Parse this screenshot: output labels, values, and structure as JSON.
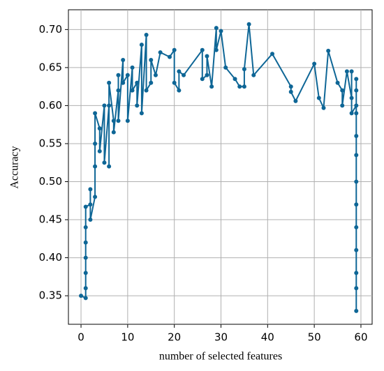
{
  "chart_data": {
    "type": "line",
    "xlabel": "number of selected features",
    "ylabel": "Accuracy",
    "xlim": [
      -2.7,
      62.4
    ],
    "ylim": [
      0.3125,
      0.726
    ],
    "xticks": [
      0,
      10,
      20,
      30,
      40,
      50,
      60
    ],
    "yticks": [
      0.35,
      {
        "value": 0.4,
        "label": "0.40"
      },
      0.45,
      {
        "value": 0.5,
        "label": "0.50"
      },
      0.55,
      {
        "value": 0.6,
        "label": "0.60"
      },
      0.65,
      {
        "value": 0.7,
        "label": "0.70"
      }
    ],
    "grid": true,
    "series": [
      {
        "color": "#0e6696",
        "x": [
          0,
          1,
          1,
          1,
          1,
          1,
          1,
          1,
          2,
          2,
          2,
          3,
          3,
          3,
          3,
          4,
          4,
          5,
          5,
          6,
          6,
          6,
          7,
          7,
          8,
          8,
          8,
          9,
          9,
          10,
          10,
          11,
          11,
          12,
          12,
          13,
          13,
          14,
          14,
          15,
          15,
          16,
          17,
          19,
          20,
          20,
          21,
          21,
          22,
          26,
          26,
          27,
          27,
          28,
          29,
          29,
          30,
          31,
          33,
          34,
          35,
          35,
          36,
          37,
          41,
          45,
          45,
          46,
          50,
          51,
          52,
          53,
          55,
          56,
          56,
          57,
          58,
          58,
          58,
          59,
          59,
          59,
          59,
          59,
          59,
          59,
          59,
          59,
          59,
          59,
          59,
          59
        ],
        "values": [
          0.35,
          0.347,
          0.36,
          0.38,
          0.4,
          0.42,
          0.44,
          0.467,
          0.47,
          0.49,
          0.45,
          0.48,
          0.52,
          0.55,
          0.59,
          0.57,
          0.54,
          0.6,
          0.525,
          0.6,
          0.52,
          0.63,
          0.58,
          0.565,
          0.62,
          0.64,
          0.58,
          0.66,
          0.63,
          0.64,
          0.58,
          0.65,
          0.62,
          0.63,
          0.6,
          0.68,
          0.59,
          0.693,
          0.62,
          0.63,
          0.66,
          0.64,
          0.67,
          0.664,
          0.673,
          0.63,
          0.62,
          0.645,
          0.64,
          0.673,
          0.635,
          0.64,
          0.665,
          0.625,
          0.702,
          0.673,
          0.698,
          0.65,
          0.635,
          0.625,
          0.625,
          0.648,
          0.707,
          0.64,
          0.668,
          0.625,
          0.618,
          0.606,
          0.655,
          0.61,
          0.597,
          0.672,
          0.63,
          0.62,
          0.6,
          0.645,
          0.61,
          0.645,
          0.59,
          0.6,
          0.635,
          0.62,
          0.59,
          0.56,
          0.535,
          0.5,
          0.47,
          0.44,
          0.41,
          0.38,
          0.36,
          0.33
        ]
      }
    ]
  }
}
